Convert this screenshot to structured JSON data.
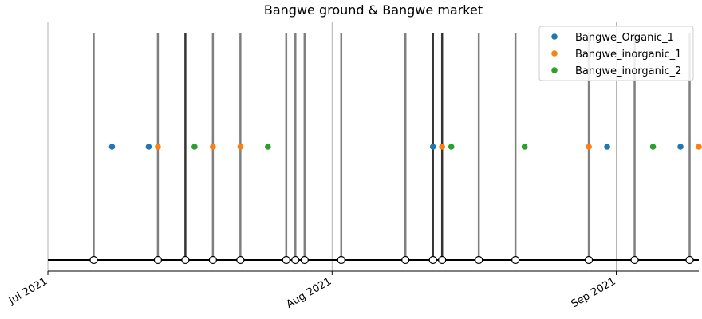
{
  "chart_data": {
    "type": "scatter",
    "title": "Bangwe ground & Bangwe market",
    "xlabel": "",
    "ylabel": "",
    "x_range": [
      "2021-07-01",
      "2021-09-10"
    ],
    "grid": "x-major",
    "x_ticks": [
      {
        "date": "2021-07-01",
        "label": "Jul 2021"
      },
      {
        "date": "2021-08-01",
        "label": "Aug 2021"
      },
      {
        "date": "2021-09-01",
        "label": "Sep 2021"
      }
    ],
    "legend_position": "top-right",
    "events": [
      {
        "date": "2021-07-06",
        "shade": "light"
      },
      {
        "date": "2021-07-13",
        "shade": "light"
      },
      {
        "date": "2021-07-16",
        "shade": "dark"
      },
      {
        "date": "2021-07-19",
        "shade": "light"
      },
      {
        "date": "2021-07-22",
        "shade": "light"
      },
      {
        "date": "2021-07-27",
        "shade": "light"
      },
      {
        "date": "2021-07-28",
        "shade": "light"
      },
      {
        "date": "2021-07-29",
        "shade": "light"
      },
      {
        "date": "2021-08-02",
        "shade": "light"
      },
      {
        "date": "2021-08-09",
        "shade": "light"
      },
      {
        "date": "2021-08-12",
        "shade": "dark"
      },
      {
        "date": "2021-08-13",
        "shade": "dark"
      },
      {
        "date": "2021-08-17",
        "shade": "light"
      },
      {
        "date": "2021-08-21",
        "shade": "light"
      },
      {
        "date": "2021-08-29",
        "shade": "light"
      },
      {
        "date": "2021-09-03",
        "shade": "light"
      },
      {
        "date": "2021-09-09",
        "shade": "light"
      }
    ],
    "series": [
      {
        "name": "Bangwe_Organic_1",
        "color": "#1f77b4",
        "dates": [
          "2021-07-08",
          "2021-07-12",
          "2021-08-12",
          "2021-08-31",
          "2021-09-08"
        ]
      },
      {
        "name": "Bangwe_inorganic_1",
        "color": "#ff7f0e",
        "dates": [
          "2021-07-13",
          "2021-07-19",
          "2021-07-22",
          "2021-08-13",
          "2021-08-29",
          "2021-09-10"
        ]
      },
      {
        "name": "Bangwe_inorganic_2",
        "color": "#2ca02c",
        "dates": [
          "2021-07-17",
          "2021-07-25",
          "2021-08-14",
          "2021-08-22",
          "2021-09-05"
        ]
      }
    ]
  }
}
